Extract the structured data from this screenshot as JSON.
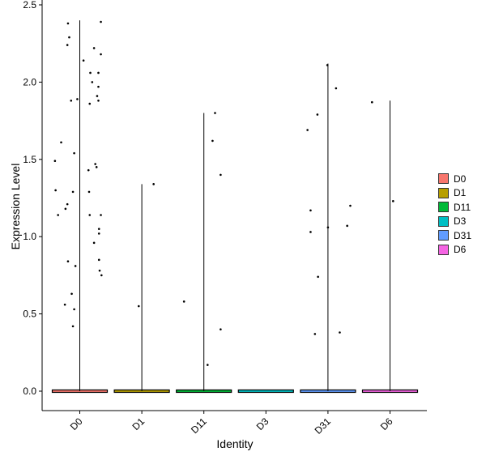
{
  "chart_data": {
    "type": "scatter",
    "subtype": "violin-plot with jittered points",
    "xlabel": "Identity",
    "ylabel": "Expression Level",
    "categories": [
      "D0",
      "D1",
      "D11",
      "D3",
      "D31",
      "D6"
    ],
    "ylim": [
      -0.13,
      2.5
    ],
    "yticks": [
      "0.0",
      "0.5",
      "1.0",
      "1.5",
      "2.0",
      "2.5"
    ],
    "ytick_values": [
      0,
      0.5,
      1.0,
      1.5,
      2.0,
      2.5
    ],
    "grid": false,
    "legend_position": "right",
    "legend": [
      {
        "name": "D0",
        "color": "#F8766D"
      },
      {
        "name": "D1",
        "color": "#B79F00"
      },
      {
        "name": "D11",
        "color": "#00BA38"
      },
      {
        "name": "D3",
        "color": "#00BFC4"
      },
      {
        "name": "D31",
        "color": "#619CFF"
      },
      {
        "name": "D6",
        "color": "#F564E3"
      }
    ],
    "violin_max": {
      "D0": 2.4,
      "D1": 1.34,
      "D11": 1.8,
      "D3": 0.0,
      "D31": 2.12,
      "D6": 1.88
    },
    "points": [
      {
        "group": "D0",
        "x_jitter": -0.19,
        "y": 2.38
      },
      {
        "group": "D0",
        "x_jitter": -0.17,
        "y": 2.29
      },
      {
        "group": "D0",
        "x_jitter": -0.2,
        "y": 2.24
      },
      {
        "group": "D0",
        "x_jitter": -0.14,
        "y": 1.88
      },
      {
        "group": "D0",
        "x_jitter": -0.04,
        "y": 1.89
      },
      {
        "group": "D0",
        "x_jitter": -0.4,
        "y": 1.49
      },
      {
        "group": "D0",
        "x_jitter": -0.3,
        "y": 1.61
      },
      {
        "group": "D0",
        "x_jitter": -0.09,
        "y": 1.54
      },
      {
        "group": "D0",
        "x_jitter": -0.39,
        "y": 1.3
      },
      {
        "group": "D0",
        "x_jitter": -0.11,
        "y": 1.29
      },
      {
        "group": "D0",
        "x_jitter": -0.2,
        "y": 1.21
      },
      {
        "group": "D0",
        "x_jitter": -0.23,
        "y": 1.18
      },
      {
        "group": "D0",
        "x_jitter": -0.35,
        "y": 1.14
      },
      {
        "group": "D0",
        "x_jitter": -0.19,
        "y": 0.84
      },
      {
        "group": "D0",
        "x_jitter": -0.07,
        "y": 0.81
      },
      {
        "group": "D0",
        "x_jitter": -0.13,
        "y": 0.63
      },
      {
        "group": "D0",
        "x_jitter": -0.24,
        "y": 0.56
      },
      {
        "group": "D0",
        "x_jitter": -0.09,
        "y": 0.53
      },
      {
        "group": "D0",
        "x_jitter": -0.11,
        "y": 0.42
      },
      {
        "group": "D0",
        "x_jitter": 0.06,
        "y": 2.14
      },
      {
        "group": "D0",
        "x_jitter": 0.23,
        "y": 2.22
      },
      {
        "group": "D0",
        "x_jitter": 0.34,
        "y": 2.39
      },
      {
        "group": "D0",
        "x_jitter": 0.34,
        "y": 2.18
      },
      {
        "group": "D0",
        "x_jitter": 0.17,
        "y": 2.06
      },
      {
        "group": "D0",
        "x_jitter": 0.3,
        "y": 2.06
      },
      {
        "group": "D0",
        "x_jitter": 0.2,
        "y": 2.0
      },
      {
        "group": "D0",
        "x_jitter": 0.3,
        "y": 1.97
      },
      {
        "group": "D0",
        "x_jitter": 0.28,
        "y": 1.91
      },
      {
        "group": "D0",
        "x_jitter": 0.3,
        "y": 1.88
      },
      {
        "group": "D0",
        "x_jitter": 0.16,
        "y": 1.86
      },
      {
        "group": "D0",
        "x_jitter": 0.25,
        "y": 1.47
      },
      {
        "group": "D0",
        "x_jitter": 0.27,
        "y": 1.45
      },
      {
        "group": "D0",
        "x_jitter": 0.14,
        "y": 1.43
      },
      {
        "group": "D0",
        "x_jitter": 0.15,
        "y": 1.29
      },
      {
        "group": "D0",
        "x_jitter": 0.34,
        "y": 1.14
      },
      {
        "group": "D0",
        "x_jitter": 0.16,
        "y": 1.14
      },
      {
        "group": "D0",
        "x_jitter": 0.31,
        "y": 1.05
      },
      {
        "group": "D0",
        "x_jitter": 0.31,
        "y": 1.02
      },
      {
        "group": "D0",
        "x_jitter": 0.23,
        "y": 0.96
      },
      {
        "group": "D0",
        "x_jitter": 0.31,
        "y": 0.85
      },
      {
        "group": "D0",
        "x_jitter": 0.32,
        "y": 0.78
      },
      {
        "group": "D0",
        "x_jitter": 0.35,
        "y": 0.75
      },
      {
        "group": "D1",
        "x_jitter": 0.19,
        "y": 1.34
      },
      {
        "group": "D1",
        "x_jitter": -0.05,
        "y": 0.55
      },
      {
        "group": "D11",
        "x_jitter": 0.18,
        "y": 1.8
      },
      {
        "group": "D11",
        "x_jitter": 0.14,
        "y": 1.62
      },
      {
        "group": "D11",
        "x_jitter": 0.27,
        "y": 1.4
      },
      {
        "group": "D11",
        "x_jitter": -0.32,
        "y": 0.58
      },
      {
        "group": "D11",
        "x_jitter": 0.27,
        "y": 0.4
      },
      {
        "group": "D11",
        "x_jitter": 0.06,
        "y": 0.17
      },
      {
        "group": "D31",
        "x_jitter": -0.01,
        "y": 2.11
      },
      {
        "group": "D31",
        "x_jitter": 0.13,
        "y": 1.96
      },
      {
        "group": "D31",
        "x_jitter": -0.17,
        "y": 1.79
      },
      {
        "group": "D31",
        "x_jitter": -0.33,
        "y": 1.69
      },
      {
        "group": "D31",
        "x_jitter": 0.36,
        "y": 1.2
      },
      {
        "group": "D31",
        "x_jitter": -0.28,
        "y": 1.17
      },
      {
        "group": "D31",
        "x_jitter": 0.31,
        "y": 1.07
      },
      {
        "group": "D31",
        "x_jitter": 0.0,
        "y": 1.06
      },
      {
        "group": "D31",
        "x_jitter": -0.28,
        "y": 1.03
      },
      {
        "group": "D31",
        "x_jitter": -0.16,
        "y": 0.74
      },
      {
        "group": "D31",
        "x_jitter": 0.19,
        "y": 0.38
      },
      {
        "group": "D31",
        "x_jitter": -0.21,
        "y": 0.37
      },
      {
        "group": "D6",
        "x_jitter": -0.29,
        "y": 1.87
      },
      {
        "group": "D6",
        "x_jitter": 0.05,
        "y": 1.23
      }
    ]
  }
}
